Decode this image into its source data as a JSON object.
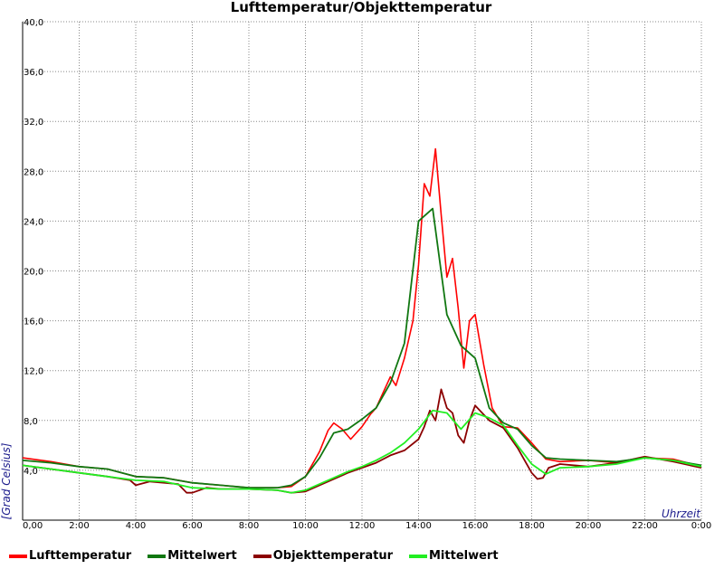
{
  "chart_data": {
    "type": "line",
    "title": "Lufttemperatur/Objekttemperatur",
    "xlabel": "Uhrzeit",
    "ylabel": "[Grad Celsius]",
    "xlim": [
      0,
      24
    ],
    "ylim": [
      0,
      40
    ],
    "x_ticks": [
      "0,00",
      "2:00",
      "4:00",
      "6:00",
      "8:00",
      "10:00",
      "12:00",
      "14:00",
      "16:00",
      "18:00",
      "20:00",
      "22:00",
      "0:00"
    ],
    "y_ticks": [
      "4,0",
      "8,0",
      "12,0",
      "16,0",
      "20,0",
      "24,0",
      "28,0",
      "32,0",
      "36,0",
      "40,0"
    ],
    "grid": true,
    "legend_position": "bottom",
    "series": [
      {
        "name": "Lufttemperatur",
        "color": "#ff0000",
        "x": [
          0,
          1,
          2,
          3,
          4,
          5,
          6,
          7,
          8,
          9,
          9.5,
          10,
          10.5,
          10.8,
          11,
          11.3,
          11.6,
          12,
          12.3,
          12.5,
          13,
          13.2,
          13.5,
          13.8,
          14,
          14.2,
          14.4,
          14.6,
          14.8,
          15,
          15.2,
          15.4,
          15.6,
          15.8,
          16,
          16.3,
          16.6,
          17,
          17.5,
          18,
          18.5,
          19,
          20,
          21,
          22,
          23,
          24
        ],
        "y": [
          5.0,
          4.7,
          4.3,
          4.1,
          3.5,
          3.4,
          3.0,
          2.8,
          2.6,
          2.6,
          2.7,
          3.5,
          5.5,
          7.2,
          7.8,
          7.3,
          6.5,
          7.5,
          8.5,
          9.0,
          11.5,
          10.8,
          13.0,
          16.0,
          20.5,
          27.0,
          26.0,
          29.8,
          24.5,
          19.5,
          21.0,
          17.0,
          12.2,
          16.0,
          16.5,
          12.5,
          9.0,
          7.5,
          7.4,
          6.2,
          4.9,
          4.7,
          4.8,
          4.6,
          5.0,
          4.9,
          4.3
        ]
      },
      {
        "name": "Mittelwert",
        "color": "#117711",
        "x": [
          0,
          1,
          2,
          3,
          4,
          5,
          6,
          7,
          8,
          9,
          9.5,
          10,
          10.5,
          11,
          11.5,
          12,
          12.5,
          13,
          13.5,
          14,
          14.5,
          15,
          15.5,
          16,
          16.5,
          17,
          17.5,
          18,
          18.5,
          19,
          20,
          21,
          22,
          23,
          24
        ],
        "y": [
          4.8,
          4.6,
          4.3,
          4.1,
          3.5,
          3.4,
          3.0,
          2.8,
          2.6,
          2.6,
          2.8,
          3.5,
          5.0,
          7.0,
          7.3,
          8.1,
          9.0,
          11.0,
          14.2,
          24.0,
          25.0,
          16.5,
          14.0,
          13.0,
          9.0,
          7.8,
          7.3,
          6.0,
          5.0,
          4.9,
          4.8,
          4.7,
          5.0,
          4.8,
          4.4
        ]
      },
      {
        "name": "Objekttemperatur",
        "color": "#8b0000",
        "x": [
          0,
          1,
          2,
          3,
          3.8,
          4,
          4.5,
          5,
          5.5,
          5.8,
          6,
          6.5,
          7,
          8,
          9,
          9.5,
          10,
          10.5,
          11,
          11.5,
          12,
          12.5,
          13,
          13.5,
          14,
          14.2,
          14.4,
          14.6,
          14.8,
          15,
          15.2,
          15.4,
          15.6,
          15.8,
          16,
          16.5,
          17,
          17.5,
          18,
          18.2,
          18.4,
          18.6,
          19,
          20,
          21,
          22,
          23,
          24
        ],
        "y": [
          4.4,
          4.1,
          3.8,
          3.5,
          3.2,
          2.8,
          3.1,
          3.0,
          2.9,
          2.2,
          2.2,
          2.6,
          2.5,
          2.5,
          2.4,
          2.2,
          2.3,
          2.8,
          3.3,
          3.8,
          4.2,
          4.6,
          5.2,
          5.6,
          6.5,
          7.5,
          8.8,
          8.0,
          10.5,
          9.0,
          8.6,
          6.8,
          6.2,
          8.0,
          9.2,
          8.0,
          7.4,
          5.8,
          3.8,
          3.3,
          3.4,
          4.2,
          4.5,
          4.3,
          4.6,
          5.1,
          4.7,
          4.2
        ]
      },
      {
        "name": "Mittelwert",
        "color": "#22ee22",
        "x": [
          0,
          1,
          2,
          3,
          4,
          5,
          6,
          7,
          8,
          9,
          9.5,
          10,
          10.5,
          11,
          11.5,
          12,
          12.5,
          13,
          13.5,
          14,
          14.5,
          15,
          15.5,
          16,
          16.5,
          17,
          17.5,
          18,
          18.5,
          19,
          20,
          21,
          22,
          23,
          24
        ],
        "y": [
          4.4,
          4.1,
          3.8,
          3.5,
          3.2,
          3.1,
          2.6,
          2.5,
          2.5,
          2.4,
          2.2,
          2.4,
          2.9,
          3.4,
          3.9,
          4.3,
          4.8,
          5.4,
          6.2,
          7.3,
          8.8,
          8.6,
          7.3,
          8.6,
          8.2,
          7.6,
          6.0,
          4.5,
          3.7,
          4.2,
          4.3,
          4.5,
          5.0,
          4.8,
          4.3
        ]
      }
    ]
  }
}
